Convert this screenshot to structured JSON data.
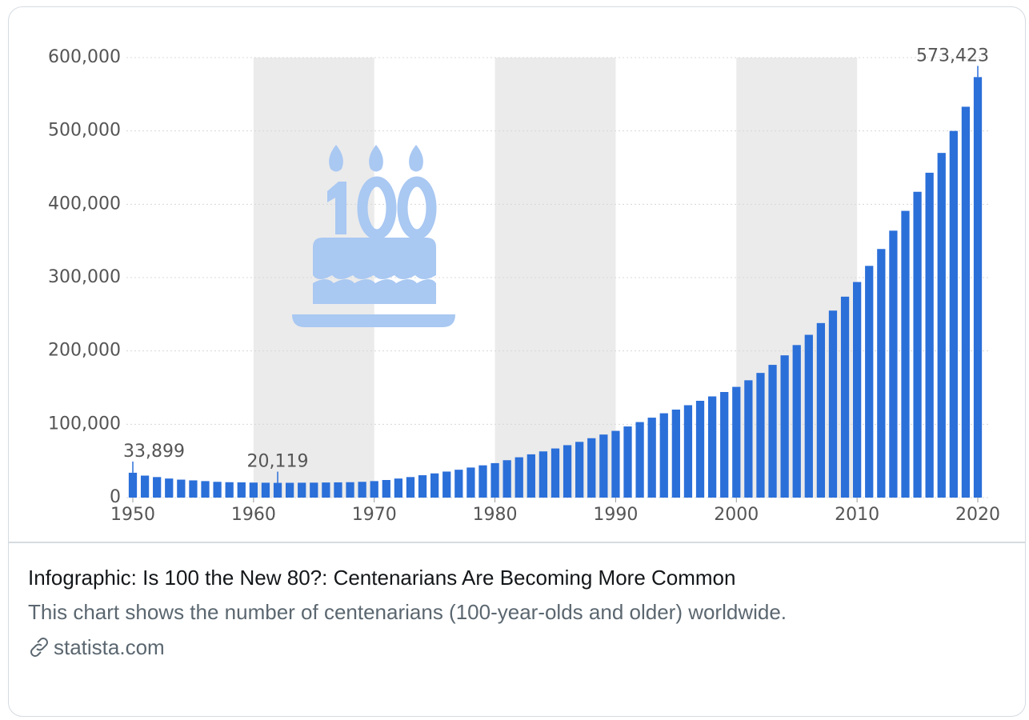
{
  "chart_data": {
    "type": "bar",
    "x": [
      1950,
      1951,
      1952,
      1953,
      1954,
      1955,
      1956,
      1957,
      1958,
      1959,
      1960,
      1961,
      1962,
      1963,
      1964,
      1965,
      1966,
      1967,
      1968,
      1969,
      1970,
      1971,
      1972,
      1973,
      1974,
      1975,
      1976,
      1977,
      1978,
      1979,
      1980,
      1981,
      1982,
      1983,
      1984,
      1985,
      1986,
      1987,
      1988,
      1989,
      1990,
      1991,
      1992,
      1993,
      1994,
      1995,
      1996,
      1997,
      1998,
      1999,
      2000,
      2001,
      2002,
      2003,
      2004,
      2005,
      2006,
      2007,
      2008,
      2009,
      2010,
      2011,
      2012,
      2013,
      2014,
      2015,
      2016,
      2017,
      2018,
      2019,
      2020
    ],
    "values": [
      33899,
      30000,
      28000,
      26000,
      24500,
      23500,
      22500,
      21500,
      21000,
      20800,
      20500,
      20300,
      20119,
      20200,
      20300,
      20400,
      20600,
      20800,
      21000,
      21500,
      22500,
      24000,
      26000,
      28000,
      30500,
      33000,
      35500,
      38000,
      41000,
      44000,
      47000,
      51000,
      55000,
      59000,
      63000,
      67000,
      71500,
      76000,
      81000,
      86000,
      91000,
      97000,
      103000,
      109000,
      115000,
      120000,
      126000,
      132000,
      138000,
      144000,
      151000,
      160000,
      170000,
      181000,
      194000,
      208000,
      222000,
      238000,
      255000,
      274000,
      294000,
      316000,
      339000,
      364000,
      391000,
      417000,
      443000,
      470000,
      500000,
      533000,
      573423
    ],
    "value_labels": [
      "33,899",
      null,
      null,
      null,
      null,
      null,
      null,
      null,
      null,
      null,
      null,
      null,
      "20,119",
      null,
      null,
      null,
      null,
      null,
      null,
      null,
      null,
      null,
      null,
      null,
      null,
      null,
      null,
      null,
      null,
      null,
      null,
      null,
      null,
      null,
      null,
      null,
      null,
      null,
      null,
      null,
      null,
      null,
      null,
      null,
      null,
      null,
      null,
      null,
      null,
      null,
      null,
      null,
      null,
      null,
      null,
      null,
      null,
      null,
      null,
      null,
      null,
      null,
      null,
      null,
      null,
      null,
      null,
      null,
      null,
      null,
      "573,423"
    ],
    "color": "#2b6fd9",
    "xlim": [
      1950,
      2020
    ],
    "xticks": [
      1950,
      1960,
      1970,
      1980,
      1990,
      2000,
      2010,
      2020
    ],
    "ylim": [
      0,
      600000
    ],
    "yticks": [
      0,
      {
        "value": 100000,
        "label": "100,000"
      },
      {
        "value": 200000,
        "label": "200,000"
      },
      {
        "value": 300000,
        "label": "300,000"
      },
      {
        "value": 400000,
        "label": "400,000"
      },
      {
        "value": 500000,
        "label": "500,000"
      },
      {
        "value": 600000,
        "label": "600,000"
      }
    ],
    "grid": true
  },
  "card": {
    "title": "Infographic: Is 100 the New 80?: Centenarians Are Becoming More Common",
    "description": "This chart shows the number of centenarians (100-year-olds and older) worldwide.",
    "link": "statista.com"
  }
}
